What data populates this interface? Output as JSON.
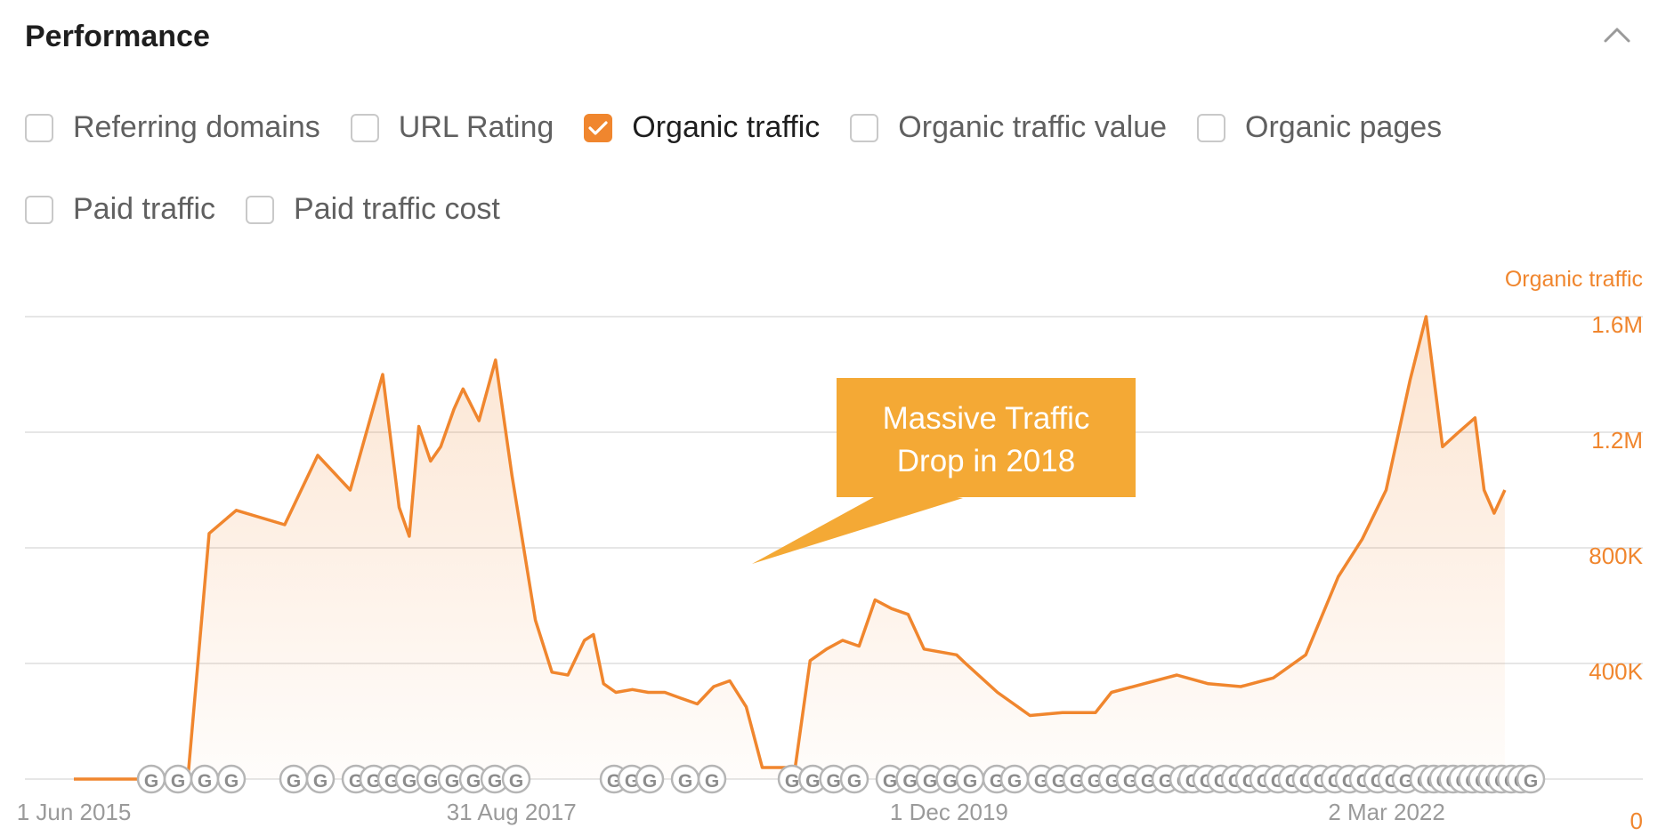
{
  "panel": {
    "title": "Performance"
  },
  "options": [
    {
      "label": "Referring domains",
      "checked": false
    },
    {
      "label": "URL Rating",
      "checked": false
    },
    {
      "label": "Organic traffic",
      "checked": true
    },
    {
      "label": "Organic traffic value",
      "checked": false
    },
    {
      "label": "Organic pages",
      "checked": false
    },
    {
      "label": "Paid traffic",
      "checked": false
    },
    {
      "label": "Paid traffic cost",
      "checked": false
    }
  ],
  "colors": {
    "accent": "#f0862e",
    "callout": "#f4a935",
    "grid": "#e6e6e6",
    "tick": "#9a9a9a"
  },
  "annotation": {
    "line1": "Massive Traffic",
    "line2": "Drop in 2018"
  },
  "chart_data": {
    "type": "area",
    "series_axis_label": "Organic traffic",
    "x_tick_labels": [
      "1 Jun 2015",
      "31 Aug 2017",
      "1 Dec 2019",
      "2 Mar 2022"
    ],
    "y_tick_labels": [
      "0",
      "400K",
      "800K",
      "1.2M",
      "1.6M"
    ],
    "y_ticks": [
      0,
      400000,
      800000,
      1200000,
      1600000
    ],
    "ylim": [
      0,
      1600000
    ],
    "xlim": [
      "2015-03-01",
      "2022-12-01"
    ],
    "grid": true,
    "series": [
      {
        "x": [
          "2015-06-01",
          "2015-09-01",
          "2015-11-15",
          "2016-01-01",
          "2016-02-10",
          "2016-04-01",
          "2016-07-01",
          "2016-09-01",
          "2016-11-01",
          "2017-01-01",
          "2017-02-01",
          "2017-02-20",
          "2017-03-10",
          "2017-04-01",
          "2017-04-20",
          "2017-05-15",
          "2017-06-01",
          "2017-07-01",
          "2017-08-01",
          "2017-09-01",
          "2017-10-15",
          "2017-11-15",
          "2017-12-15",
          "2018-01-15",
          "2018-02-01",
          "2018-02-20",
          "2018-03-15",
          "2018-04-15",
          "2018-05-15",
          "2018-06-15",
          "2018-07-15",
          "2018-08-15",
          "2018-09-15",
          "2018-10-15",
          "2018-11-15",
          "2018-12-15",
          "2019-01-15",
          "2019-02-15",
          "2019-03-15",
          "2019-04-15",
          "2019-05-15",
          "2019-06-15",
          "2019-07-15",
          "2019-08-15",
          "2019-09-15",
          "2019-10-15",
          "2019-12-15",
          "2020-01-01",
          "2020-03-01",
          "2020-05-01",
          "2020-07-01",
          "2020-09-01",
          "2020-10-01",
          "2020-12-01",
          "2021-02-01",
          "2021-04-01",
          "2021-06-01",
          "2021-08-01",
          "2021-10-01",
          "2021-12-01",
          "2022-01-15",
          "2022-03-01",
          "2022-04-15",
          "2022-05-15",
          "2022-06-15",
          "2022-07-15",
          "2022-08-15",
          "2022-09-01",
          "2022-09-20",
          "2022-10-10"
        ],
        "y": [
          0,
          0,
          0,
          0,
          850000,
          930000,
          880000,
          1120000,
          1000000,
          1400000,
          940000,
          840000,
          1220000,
          1100000,
          1150000,
          1280000,
          1350000,
          1240000,
          1450000,
          1050000,
          550000,
          370000,
          360000,
          480000,
          500000,
          330000,
          300000,
          310000,
          300000,
          300000,
          280000,
          260000,
          320000,
          340000,
          250000,
          40000,
          40000,
          40000,
          410000,
          450000,
          480000,
          460000,
          620000,
          590000,
          570000,
          450000,
          430000,
          400000,
          300000,
          220000,
          230000,
          230000,
          300000,
          330000,
          360000,
          330000,
          320000,
          350000,
          430000,
          700000,
          830000,
          1000000,
          1380000,
          1600000,
          1150000,
          1200000,
          1250000,
          1000000,
          920000,
          1000000
        ]
      }
    ],
    "google_update_markers": 68
  }
}
